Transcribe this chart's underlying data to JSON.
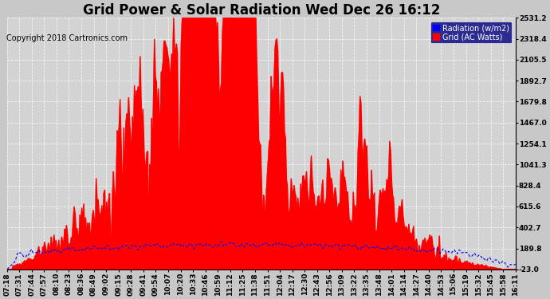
{
  "title": "Grid Power & Solar Radiation Wed Dec 26 16:12",
  "copyright": "Copyright 2018 Cartronics.com",
  "legend_labels": [
    "Radiation (w/m2)",
    "Grid (AC Watts)"
  ],
  "legend_colors": [
    "#0000ff",
    "#ff0000"
  ],
  "radiation_color": "#0000ff",
  "grid_color": "#ff0000",
  "grid_fill_color": "#ff0000",
  "background_color": "#c8c8c8",
  "plot_bg_color": "#d3d3d3",
  "ymin": -23.0,
  "ymax": 2531.2,
  "yticks": [
    -23.0,
    189.8,
    402.7,
    615.6,
    828.4,
    1041.3,
    1254.1,
    1467.0,
    1679.8,
    1892.7,
    2105.5,
    2318.4,
    2531.2
  ],
  "x_labels": [
    "07:18",
    "07:31",
    "07:44",
    "07:57",
    "08:10",
    "08:23",
    "08:36",
    "08:49",
    "09:02",
    "09:15",
    "09:28",
    "09:41",
    "09:54",
    "10:07",
    "10:20",
    "10:33",
    "10:46",
    "10:59",
    "11:12",
    "11:25",
    "11:38",
    "11:51",
    "12:04",
    "12:17",
    "12:30",
    "12:43",
    "12:56",
    "13:09",
    "13:22",
    "13:35",
    "13:48",
    "14:01",
    "14:14",
    "14:27",
    "14:40",
    "14:53",
    "15:06",
    "15:19",
    "15:32",
    "15:45",
    "15:58",
    "16:11"
  ],
  "title_fontsize": 12,
  "copyright_fontsize": 7,
  "tick_fontsize": 6.5,
  "legend_fontsize": 7
}
